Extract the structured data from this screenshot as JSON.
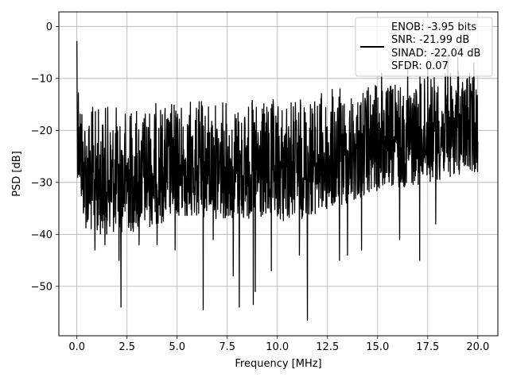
{
  "chart_data": {
    "type": "line",
    "xlabel": "Frequency [MHz]",
    "ylabel": "PSD [dB]",
    "xlim": [
      -0.9,
      21.0
    ],
    "ylim": [
      -59.5,
      2.8
    ],
    "xticks": [
      0.0,
      2.5,
      5.0,
      7.5,
      10.0,
      12.5,
      15.0,
      17.5,
      20.0
    ],
    "xtick_labels": [
      "0.0",
      "2.5",
      "5.0",
      "7.5",
      "10.0",
      "12.5",
      "15.0",
      "17.5",
      "20.0"
    ],
    "yticks": [
      0,
      -10,
      -20,
      -30,
      -40,
      -50
    ],
    "ytick_labels": [
      "0",
      "−10",
      "−20",
      "−30",
      "−40",
      "−50"
    ],
    "grid": true,
    "legend_position": "top-right",
    "series": [
      {
        "color": "#000000",
        "x_range": [
          0.0,
          20.0
        ],
        "envelope_upper": [
          [
            0.0,
            -3
          ],
          [
            0.2,
            -12
          ],
          [
            0.5,
            -15
          ],
          [
            2.5,
            -15
          ],
          [
            5.0,
            -14
          ],
          [
            7.5,
            -14
          ],
          [
            10.0,
            -14
          ],
          [
            12.5,
            -12
          ],
          [
            15.0,
            -11
          ],
          [
            16.5,
            -10
          ],
          [
            17.5,
            -9
          ],
          [
            20.0,
            -8
          ]
        ],
        "envelope_lower": [
          [
            0.0,
            -28
          ],
          [
            0.3,
            -37
          ],
          [
            0.5,
            -40
          ],
          [
            2.5,
            -40
          ],
          [
            5.0,
            -37
          ],
          [
            7.5,
            -37
          ],
          [
            10.0,
            -38
          ],
          [
            12.5,
            -36
          ],
          [
            15.0,
            -32
          ],
          [
            17.5,
            -30
          ],
          [
            20.0,
            -28
          ]
        ],
        "notable_dips": [
          [
            0.9,
            -43
          ],
          [
            1.4,
            -42
          ],
          [
            2.1,
            -45
          ],
          [
            2.2,
            -54
          ],
          [
            3.1,
            -42
          ],
          [
            4.0,
            -42
          ],
          [
            4.9,
            -43
          ],
          [
            6.3,
            -54.5
          ],
          [
            6.8,
            -41
          ],
          [
            7.8,
            -48
          ],
          [
            8.1,
            -54
          ],
          [
            8.8,
            -53.5
          ],
          [
            8.9,
            -51
          ],
          [
            9.7,
            -47
          ],
          [
            11.1,
            -44
          ],
          [
            11.5,
            -56.5
          ],
          [
            13.1,
            -45
          ],
          [
            13.5,
            -44
          ],
          [
            14.2,
            -43
          ],
          [
            16.1,
            -41
          ],
          [
            17.1,
            -45
          ],
          [
            17.9,
            -38
          ],
          [
            18.5,
            -42
          ],
          [
            19.8,
            -41
          ]
        ],
        "peaks": [
          [
            0.0,
            -2.8
          ],
          [
            15.2,
            -9.0
          ],
          [
            16.5,
            -7.5
          ],
          [
            17.5,
            -7.0
          ],
          [
            18.5,
            -5.5
          ],
          [
            19.0,
            -6.0
          ],
          [
            19.8,
            -7.0
          ]
        ]
      }
    ],
    "legend": [
      "ENOB: -3.95 bits",
      "SNR: -21.99 dB",
      "SINAD: -22.04 dB",
      "SFDR: 0.07"
    ]
  }
}
